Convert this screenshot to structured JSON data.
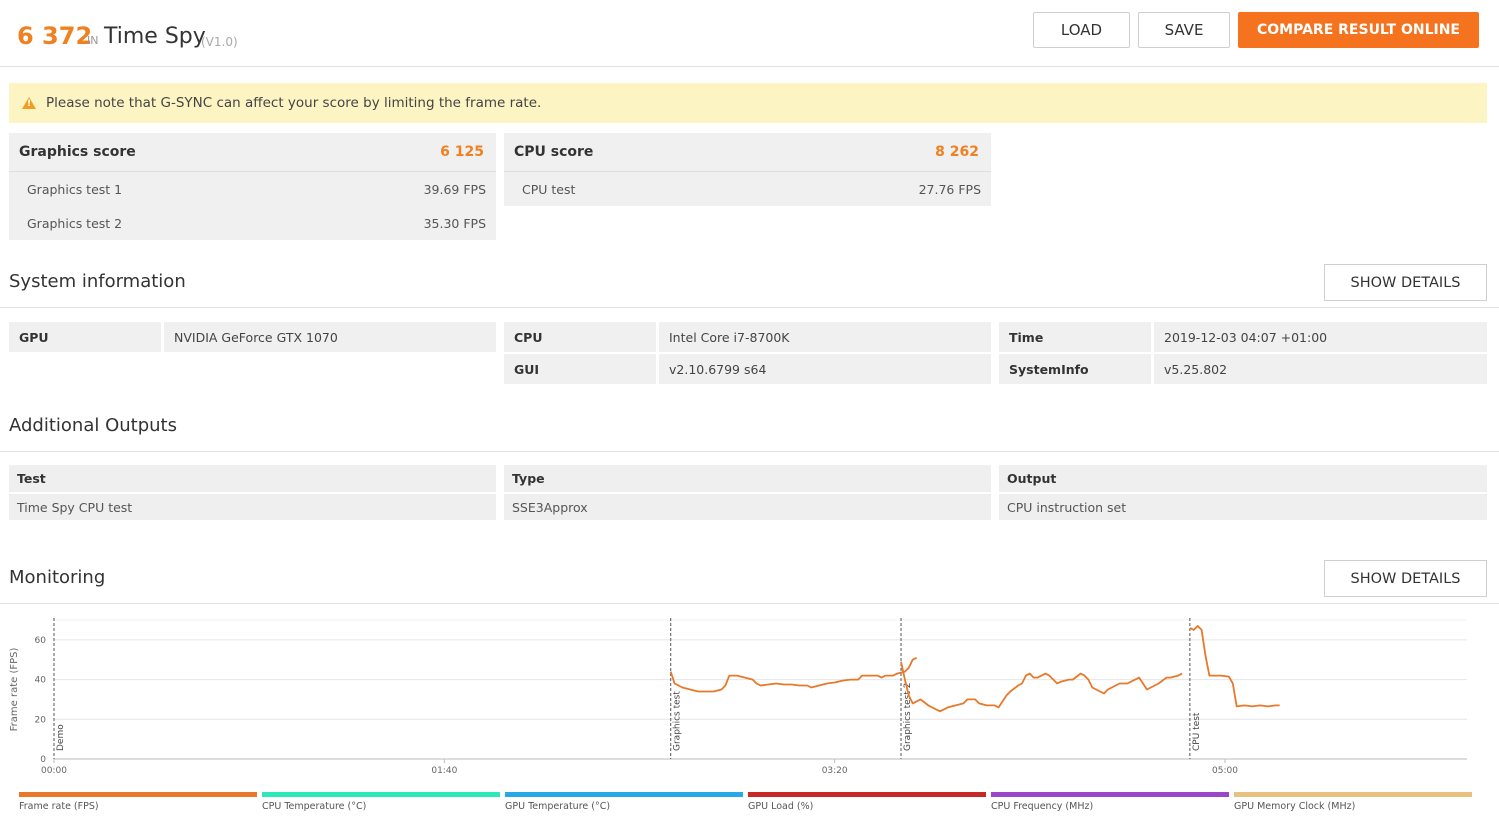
{
  "header": {
    "score": "6 372",
    "in": "IN",
    "benchmark": "Time Spy",
    "version": "(V1.0)",
    "load_label": "LOAD",
    "save_label": "SAVE",
    "compare_label": "COMPARE RESULT ONLINE"
  },
  "notice": {
    "icon": "warning-icon",
    "text": "Please note that G-SYNC can affect your score by limiting the frame rate."
  },
  "scores": {
    "graphics": {
      "label": "Graphics score",
      "value": "6 125",
      "tests": [
        {
          "name": "Graphics test 1",
          "value": "39.69 FPS"
        },
        {
          "name": "Graphics test 2",
          "value": "35.30 FPS"
        }
      ]
    },
    "cpu": {
      "label": "CPU score",
      "value": "8 262",
      "tests": [
        {
          "name": "CPU test",
          "value": "27.76 FPS"
        }
      ]
    }
  },
  "system_info": {
    "title": "System information",
    "details_label": "SHOW DETAILS",
    "gpu_key": "GPU",
    "gpu_val": "NVIDIA GeForce GTX 1070",
    "cpu_key": "CPU",
    "cpu_val": "Intel Core i7-8700K",
    "gui_key": "GUI",
    "gui_val": "v2.10.6799 s64",
    "time_key": "Time",
    "time_val": "2019-12-03 04:07 +01:00",
    "sysinfo_key": "SystemInfo",
    "sysinfo_val": "v5.25.802"
  },
  "outputs": {
    "title": "Additional Outputs",
    "headers": [
      "Test",
      "Type",
      "Output"
    ],
    "row": [
      "Time Spy CPU test",
      "SSE3Approx",
      "CPU instruction set"
    ]
  },
  "monitoring": {
    "title": "Monitoring",
    "details_label": "SHOW DETAILS",
    "legend": [
      {
        "label": "Frame rate (FPS)",
        "color": "#e8782a"
      },
      {
        "label": "CPU Temperature (°C)",
        "color": "#2de8b8"
      },
      {
        "label": "GPU Temperature (°C)",
        "color": "#28a8e8"
      },
      {
        "label": "GPU Load (%)",
        "color": "#c82828"
      },
      {
        "label": "CPU Frequency (MHz)",
        "color": "#9848c8"
      },
      {
        "label": "GPU Memory Clock (MHz)",
        "color": "#e8c080"
      }
    ]
  },
  "chart_data": {
    "type": "line",
    "ylabel": "Frame rate (FPS)",
    "ylim": [
      0,
      70
    ],
    "yticks": [
      0,
      20,
      40,
      60
    ],
    "xlim": [
      0,
      362
    ],
    "xticks": [
      {
        "t": 0,
        "label": "00:00"
      },
      {
        "t": 100,
        "label": "01:40"
      },
      {
        "t": 200,
        "label": "03:20"
      },
      {
        "t": 300,
        "label": "05:00"
      }
    ],
    "markers": [
      {
        "t": 0,
        "label": "Demo"
      },
      {
        "t": 158,
        "label": "Graphics test"
      },
      {
        "t": 217,
        "label": "Graphics test 2"
      },
      {
        "t": 291,
        "label": "CPU test"
      }
    ],
    "grid": true,
    "series": [
      {
        "color": "#e8782a",
        "segments": [
          [
            [
              158,
              44
            ],
            [
              159,
              38
            ],
            [
              161,
              36
            ],
            [
              163,
              35
            ],
            [
              165,
              34
            ],
            [
              167,
              34
            ],
            [
              169,
              34
            ],
            [
              171,
              35
            ],
            [
              172,
              37
            ],
            [
              173,
              42
            ],
            [
              175,
              42
            ],
            [
              177,
              41
            ],
            [
              179,
              40
            ],
            [
              180,
              38
            ],
            [
              181,
              37
            ],
            [
              183,
              37.5
            ],
            [
              185,
              38
            ],
            [
              187,
              37.5
            ],
            [
              189,
              37.5
            ],
            [
              191,
              37
            ],
            [
              193,
              37
            ],
            [
              194,
              36
            ],
            [
              196,
              37
            ],
            [
              198,
              38
            ],
            [
              200,
              38.5
            ],
            [
              202,
              39.5
            ],
            [
              204,
              40
            ],
            [
              206,
              40
            ],
            [
              207,
              42
            ],
            [
              209,
              42
            ],
            [
              211,
              42
            ],
            [
              212,
              41
            ],
            [
              213,
              42
            ],
            [
              215,
              42
            ],
            [
              216,
              43
            ],
            [
              218,
              44
            ],
            [
              219,
              46
            ],
            [
              220,
              50
            ],
            [
              221,
              51
            ]
          ],
          [
            [
              217,
              49
            ],
            [
              218,
              40
            ],
            [
              219,
              32
            ],
            [
              220,
              28
            ],
            [
              221,
              29
            ],
            [
              222,
              30
            ],
            [
              224,
              27
            ],
            [
              226,
              25
            ],
            [
              227,
              24
            ],
            [
              229,
              26
            ],
            [
              231,
              27
            ],
            [
              233,
              28
            ],
            [
              234,
              30
            ],
            [
              236,
              30
            ],
            [
              237,
              28
            ],
            [
              239,
              27
            ],
            [
              241,
              27
            ],
            [
              242,
              26
            ],
            [
              244,
              32
            ],
            [
              245,
              34
            ],
            [
              247,
              37
            ],
            [
              248,
              38
            ],
            [
              249,
              42
            ],
            [
              250,
              43
            ],
            [
              251,
              41
            ],
            [
              252,
              41
            ],
            [
              254,
              43
            ],
            [
              255,
              42
            ],
            [
              257,
              38
            ],
            [
              258,
              39
            ],
            [
              260,
              40
            ],
            [
              261,
              40
            ],
            [
              263,
              43
            ],
            [
              264,
              42
            ],
            [
              265,
              40
            ],
            [
              266,
              36
            ],
            [
              268,
              34
            ],
            [
              269,
              33
            ],
            [
              270,
              35
            ],
            [
              271,
              36
            ],
            [
              273,
              38
            ],
            [
              274,
              38
            ],
            [
              275,
              38
            ],
            [
              276,
              39
            ],
            [
              278,
              41
            ],
            [
              279,
              38
            ],
            [
              280,
              35
            ],
            [
              282,
              37
            ],
            [
              283,
              38
            ],
            [
              285,
              41
            ],
            [
              286,
              41
            ],
            [
              288,
              42
            ],
            [
              289,
              43
            ]
          ],
          [
            [
              291,
              66
            ],
            [
              292,
              65
            ],
            [
              293,
              67
            ],
            [
              294,
              65
            ],
            [
              295,
              52
            ],
            [
              296,
              42
            ],
            [
              297,
              42
            ],
            [
              299,
              42
            ],
            [
              301,
              41.5
            ],
            [
              302,
              38
            ],
            [
              303,
              26.5
            ],
            [
              305,
              27
            ],
            [
              307,
              26.5
            ],
            [
              309,
              27
            ],
            [
              311,
              26.5
            ],
            [
              313,
              27
            ],
            [
              314,
              27
            ]
          ]
        ]
      }
    ]
  }
}
